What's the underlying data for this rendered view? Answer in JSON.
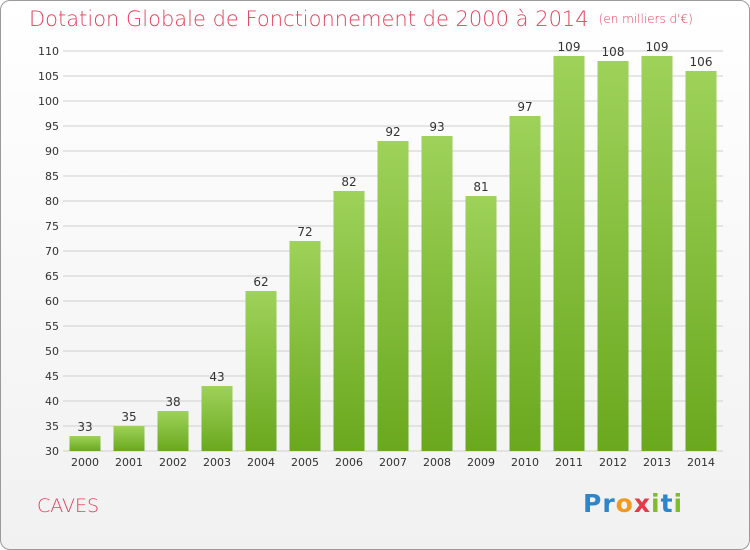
{
  "header": {
    "title": "Dotation Globale de Fonctionnement de 2000 à 2014",
    "unit": "(en milliers d'€)"
  },
  "footer": {
    "commune": "CAVES",
    "logo_letters": [
      {
        "char": "P",
        "color": "#2c86c9"
      },
      {
        "char": "r",
        "color": "#2c86c9"
      },
      {
        "char": "o",
        "color": "#f29a1f"
      },
      {
        "char": "x",
        "color": "#e53a4a"
      },
      {
        "char": "i",
        "color": "#7dbd2a"
      },
      {
        "char": "t",
        "color": "#2c86c9"
      },
      {
        "char": "i",
        "color": "#7dbd2a"
      }
    ]
  },
  "colors": {
    "title": "#e5405a",
    "bar_light": "#9ed25a",
    "bar_dark": "#6aa81e",
    "grid": "#cfcfcf"
  },
  "chart_data": {
    "type": "bar",
    "categories": [
      "2000",
      "2001",
      "2002",
      "2003",
      "2004",
      "2005",
      "2006",
      "2007",
      "2008",
      "2009",
      "2010",
      "2011",
      "2012",
      "2013",
      "2014"
    ],
    "values": [
      33,
      35,
      38,
      43,
      62,
      72,
      82,
      92,
      93,
      81,
      97,
      109,
      108,
      109,
      106
    ],
    "ylim": [
      30,
      110
    ],
    "yticks": [
      30,
      35,
      40,
      45,
      50,
      55,
      60,
      65,
      70,
      75,
      80,
      85,
      90,
      95,
      100,
      105,
      110
    ],
    "grid": true,
    "data_labels": true
  }
}
